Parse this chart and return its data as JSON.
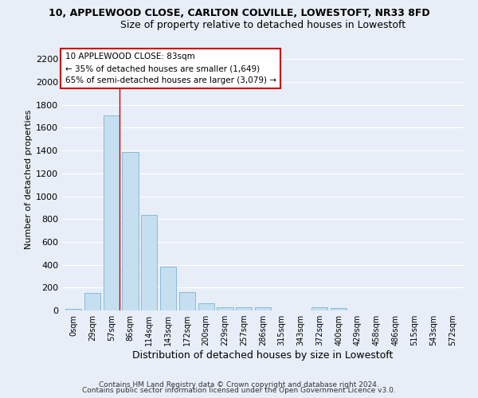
{
  "title": "10, APPLEWOOD CLOSE, CARLTON COLVILLE, LOWESTOFT, NR33 8FD",
  "subtitle": "Size of property relative to detached houses in Lowestoft",
  "xlabel": "Distribution of detached houses by size in Lowestoft",
  "ylabel": "Number of detached properties",
  "footer_line1": "Contains HM Land Registry data © Crown copyright and database right 2024.",
  "footer_line2": "Contains public sector information licensed under the Open Government Licence v3.0.",
  "bar_labels": [
    "0sqm",
    "29sqm",
    "57sqm",
    "86sqm",
    "114sqm",
    "143sqm",
    "172sqm",
    "200sqm",
    "229sqm",
    "257sqm",
    "286sqm",
    "315sqm",
    "343sqm",
    "372sqm",
    "400sqm",
    "429sqm",
    "458sqm",
    "486sqm",
    "515sqm",
    "543sqm",
    "572sqm"
  ],
  "bar_values": [
    15,
    155,
    1710,
    1390,
    835,
    385,
    160,
    60,
    30,
    25,
    25,
    0,
    0,
    25,
    20,
    0,
    0,
    0,
    0,
    0,
    0
  ],
  "bar_color": "#c5dff0",
  "bar_edge_color": "#7ab3d4",
  "background_color": "#e8eef7",
  "grid_color": "#ffffff",
  "property_line_bar_index": 2,
  "annotation_line1": "10 APPLEWOOD CLOSE: 83sqm",
  "annotation_line2": "← 35% of detached houses are smaller (1,649)",
  "annotation_line3": "65% of semi-detached houses are larger (3,079) →",
  "annotation_box_color": "#ffffff",
  "annotation_border_color": "#cc0000",
  "property_line_color": "#cc0000",
  "ylim": [
    0,
    2300
  ],
  "yticks": [
    0,
    200,
    400,
    600,
    800,
    1000,
    1200,
    1400,
    1600,
    1800,
    2000,
    2200
  ]
}
